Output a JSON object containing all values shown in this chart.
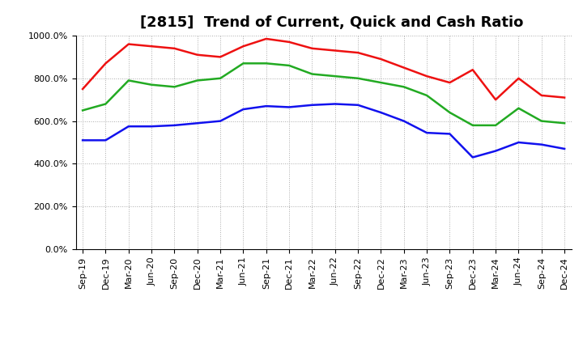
{
  "title": "[2815]  Trend of Current, Quick and Cash Ratio",
  "ylim": [
    0,
    1000
  ],
  "yticks": [
    0,
    200,
    400,
    600,
    800,
    1000
  ],
  "ytick_labels": [
    "0.0%",
    "200.0%",
    "400.0%",
    "600.0%",
    "800.0%",
    "1000.0%"
  ],
  "x_labels": [
    "Sep-19",
    "Dec-19",
    "Mar-20",
    "Jun-20",
    "Sep-20",
    "Dec-20",
    "Mar-21",
    "Jun-21",
    "Sep-21",
    "Dec-21",
    "Mar-22",
    "Jun-22",
    "Sep-22",
    "Dec-22",
    "Mar-23",
    "Jun-23",
    "Sep-23",
    "Dec-23",
    "Mar-24",
    "Jun-24",
    "Sep-24",
    "Dec-24"
  ],
  "current_ratio": [
    750,
    870,
    960,
    950,
    940,
    910,
    900,
    950,
    985,
    970,
    940,
    930,
    920,
    890,
    850,
    810,
    780,
    840,
    700,
    800,
    720,
    710
  ],
  "quick_ratio": [
    650,
    680,
    790,
    770,
    760,
    790,
    800,
    870,
    870,
    860,
    820,
    810,
    800,
    780,
    760,
    720,
    640,
    580,
    580,
    660,
    600,
    590
  ],
  "cash_ratio": [
    510,
    510,
    575,
    575,
    580,
    590,
    600,
    655,
    670,
    665,
    675,
    680,
    675,
    640,
    600,
    545,
    540,
    430,
    460,
    500,
    490,
    470
  ],
  "current_color": "#ee1111",
  "quick_color": "#22aa22",
  "cash_color": "#1111ee",
  "bg_color": "#ffffff",
  "grid_color": "#aaaaaa",
  "line_width": 1.8,
  "title_fontsize": 13,
  "tick_fontsize": 8,
  "legend_fontsize": 10
}
